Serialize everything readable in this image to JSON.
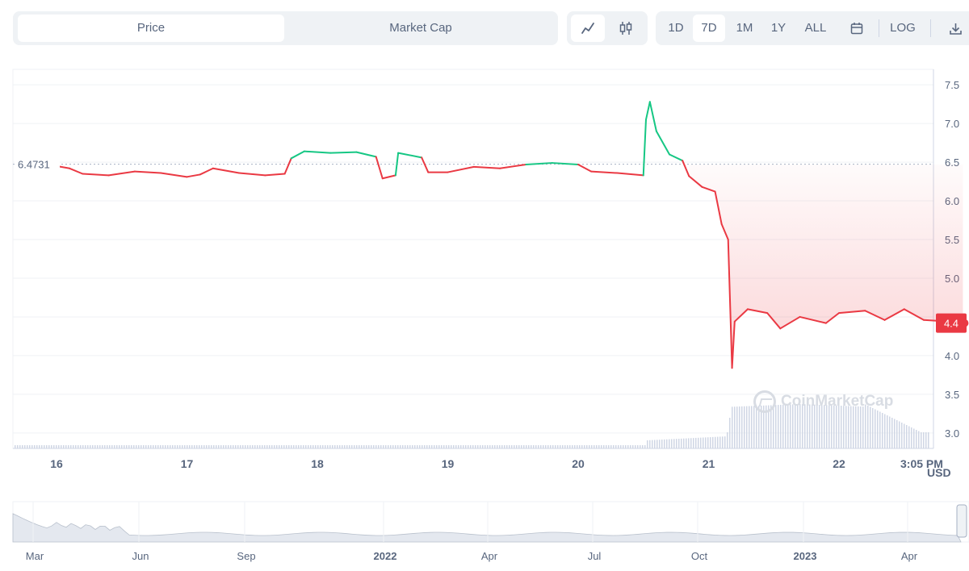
{
  "toolbar": {
    "tabs": [
      {
        "label": "Price",
        "active": true
      },
      {
        "label": "Market Cap",
        "active": false
      }
    ],
    "chart_types": [
      {
        "icon": "line-chart-icon",
        "active": true
      },
      {
        "icon": "candlestick-icon",
        "active": false
      }
    ],
    "ranges": [
      {
        "label": "1D",
        "active": false
      },
      {
        "label": "7D",
        "active": true
      },
      {
        "label": "1M",
        "active": false
      },
      {
        "label": "1Y",
        "active": false
      },
      {
        "label": "ALL",
        "active": false
      }
    ],
    "calendar_icon": "calendar-icon",
    "log_label": "LOG",
    "download_icon": "download-icon"
  },
  "chart_data": {
    "type": "line",
    "open_price_label": "6.4731",
    "current_price_label": "4.4",
    "currency": "USD",
    "watermark": "CoinMarketCap",
    "colors": {
      "up": "#16c784",
      "down": "#ea3943",
      "area_down": "#ea3943",
      "volume": "#cfd6e4"
    },
    "y_ticks": [
      "7.5",
      "7.0",
      "6.5",
      "6.0",
      "5.5",
      "5.0",
      "4.5",
      "4.0",
      "3.5",
      "3.0"
    ],
    "ylim": [
      2.8,
      7.7
    ],
    "x_ticks": [
      "16",
      "17",
      "18",
      "19",
      "20",
      "21",
      "22",
      "3:05 PM"
    ],
    "open_price": 6.4731,
    "current_price": 4.42,
    "series": [
      {
        "values_by_day": [
          {
            "day": 16.0,
            "price": 6.45
          },
          {
            "day": 16.1,
            "price": 6.42
          },
          {
            "day": 16.2,
            "price": 6.35
          },
          {
            "day": 16.4,
            "price": 6.33
          },
          {
            "day": 16.6,
            "price": 6.38
          },
          {
            "day": 16.8,
            "price": 6.36
          },
          {
            "day": 17.0,
            "price": 6.31
          },
          {
            "day": 17.1,
            "price": 6.34
          },
          {
            "day": 17.2,
            "price": 6.42
          },
          {
            "day": 17.4,
            "price": 6.36
          },
          {
            "day": 17.6,
            "price": 6.33
          },
          {
            "day": 17.75,
            "price": 6.35
          },
          {
            "day": 17.8,
            "price": 6.55
          },
          {
            "day": 17.9,
            "price": 6.64
          },
          {
            "day": 18.1,
            "price": 6.62
          },
          {
            "day": 18.3,
            "price": 6.63
          },
          {
            "day": 18.45,
            "price": 6.57
          },
          {
            "day": 18.5,
            "price": 6.29
          },
          {
            "day": 18.6,
            "price": 6.33
          },
          {
            "day": 18.62,
            "price": 6.62
          },
          {
            "day": 18.8,
            "price": 6.56
          },
          {
            "day": 18.85,
            "price": 6.37
          },
          {
            "day": 19.0,
            "price": 6.37
          },
          {
            "day": 19.2,
            "price": 6.44
          },
          {
            "day": 19.4,
            "price": 6.42
          },
          {
            "day": 19.6,
            "price": 6.47
          },
          {
            "day": 19.8,
            "price": 6.49
          },
          {
            "day": 20.0,
            "price": 6.47
          },
          {
            "day": 20.1,
            "price": 6.38
          },
          {
            "day": 20.3,
            "price": 6.36
          },
          {
            "day": 20.5,
            "price": 6.33
          },
          {
            "day": 20.52,
            "price": 7.05
          },
          {
            "day": 20.55,
            "price": 7.28
          },
          {
            "day": 20.6,
            "price": 6.9
          },
          {
            "day": 20.7,
            "price": 6.6
          },
          {
            "day": 20.8,
            "price": 6.52
          },
          {
            "day": 20.85,
            "price": 6.32
          },
          {
            "day": 20.95,
            "price": 6.18
          },
          {
            "day": 21.05,
            "price": 6.12
          },
          {
            "day": 21.1,
            "price": 5.7
          },
          {
            "day": 21.15,
            "price": 5.5
          },
          {
            "day": 21.18,
            "price": 3.84
          },
          {
            "day": 21.2,
            "price": 4.44
          },
          {
            "day": 21.3,
            "price": 4.6
          },
          {
            "day": 21.45,
            "price": 4.55
          },
          {
            "day": 21.55,
            "price": 4.35
          },
          {
            "day": 21.7,
            "price": 4.5
          },
          {
            "day": 21.9,
            "price": 4.42
          },
          {
            "day": 22.0,
            "price": 4.55
          },
          {
            "day": 22.2,
            "price": 4.58
          },
          {
            "day": 22.35,
            "price": 4.46
          },
          {
            "day": 22.5,
            "price": 4.6
          },
          {
            "day": 22.65,
            "price": 4.46
          },
          {
            "day": 22.85,
            "price": 4.44
          },
          {
            "day": 22.95,
            "price": 4.42
          }
        ]
      }
    ]
  },
  "navigator": {
    "x_ticks": [
      "Mar",
      "Jun",
      "Sep",
      "2022",
      "Apr",
      "Jul",
      "Oct",
      "2023",
      "Apr"
    ],
    "bold_ticks": [
      "2022",
      "2023"
    ]
  }
}
